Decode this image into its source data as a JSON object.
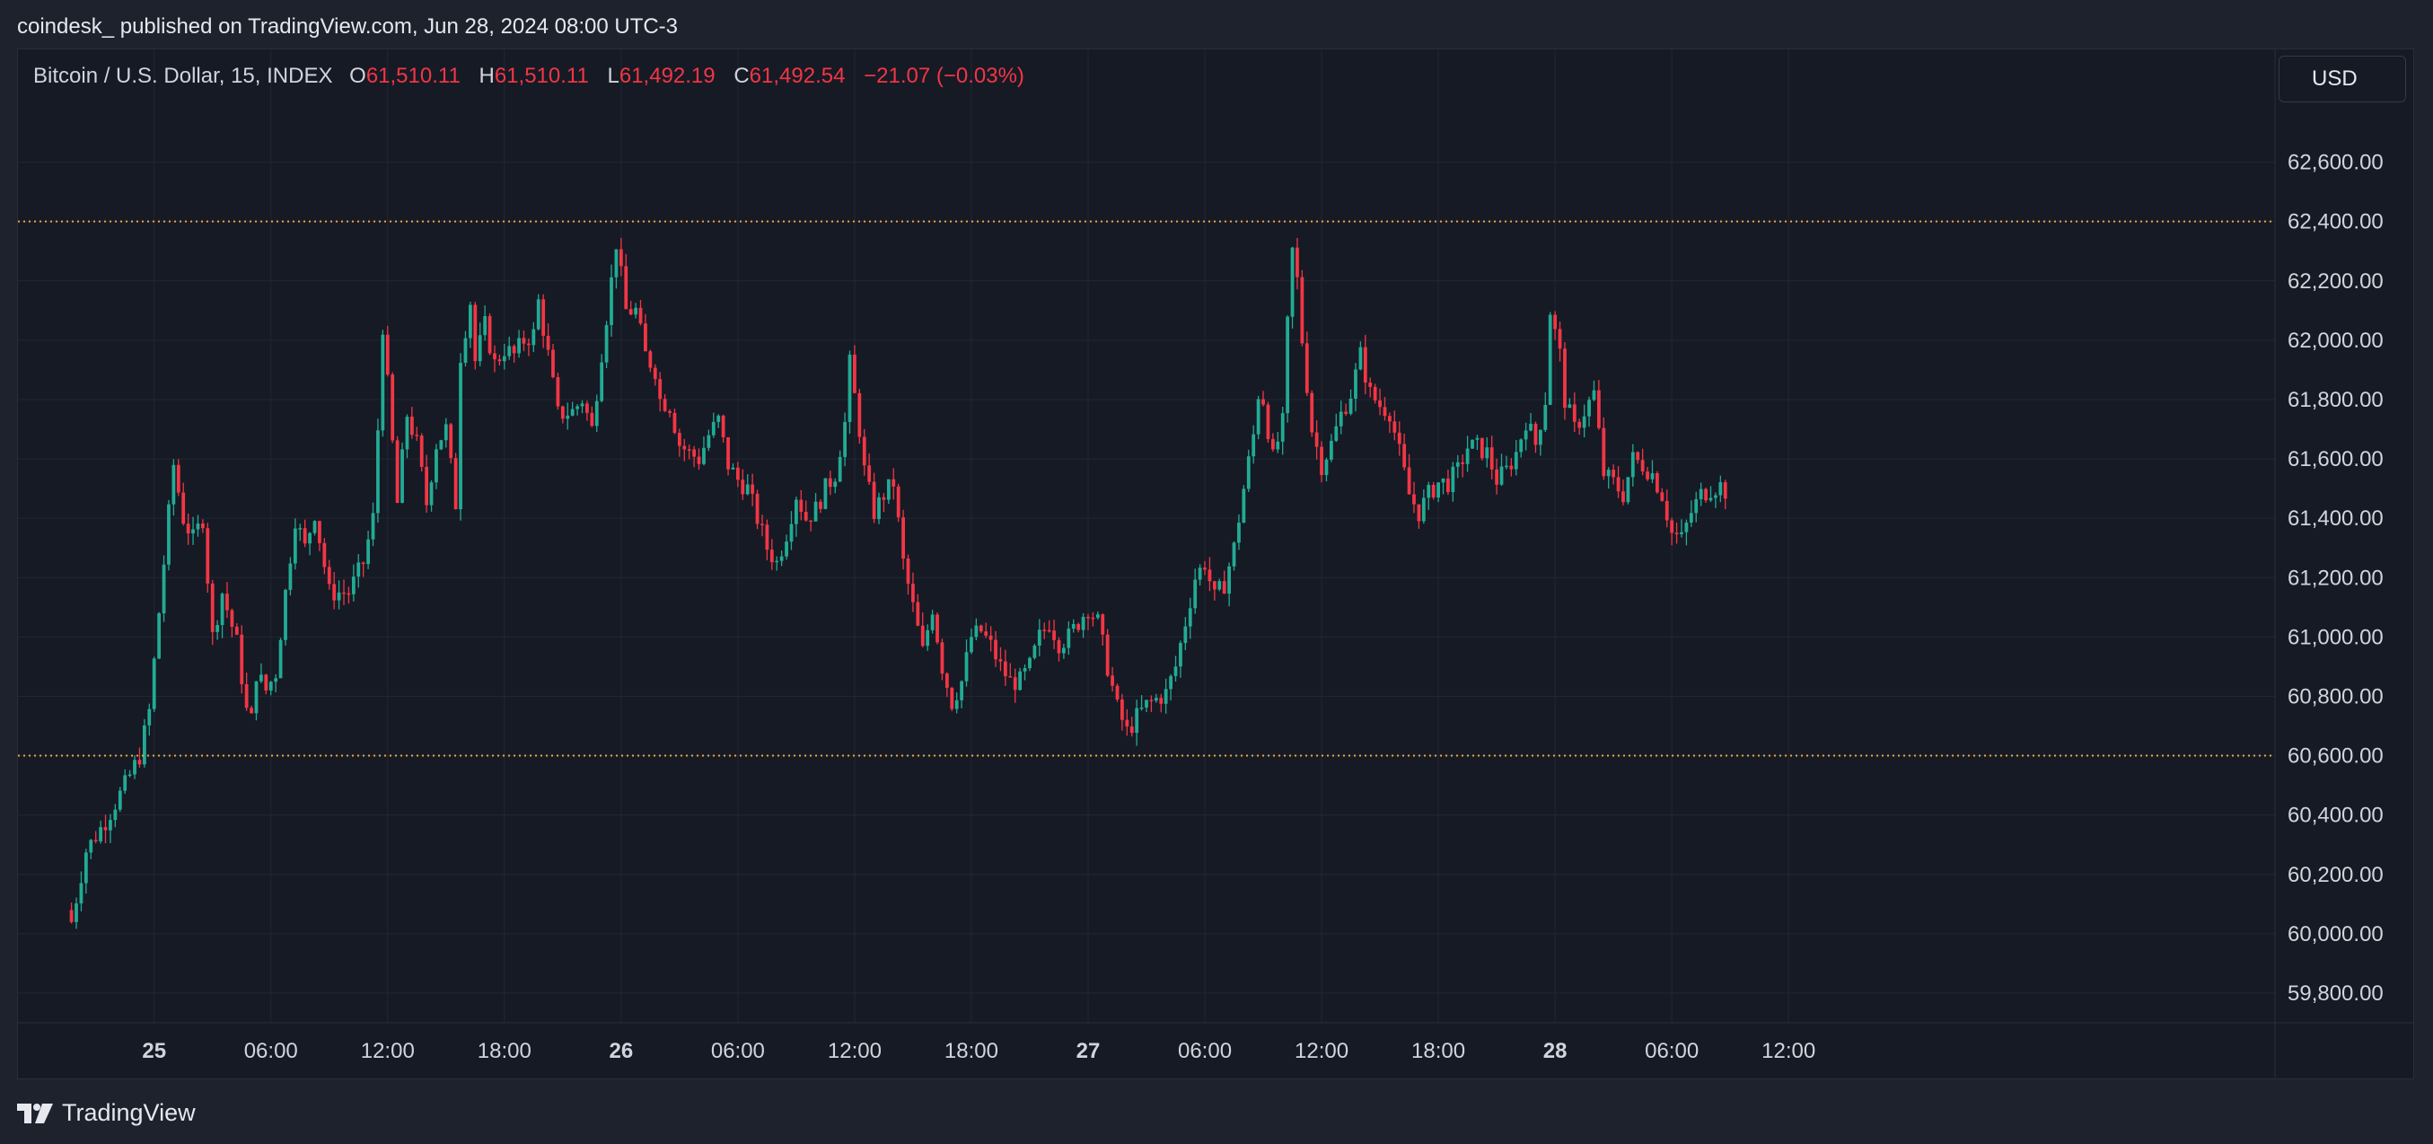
{
  "header": {
    "publisher_line": "coindesk_ published on TradingView.com, Jun 28, 2024 08:00 UTC-3"
  },
  "legend": {
    "symbol": "Bitcoin / U.S. Dollar, 15, INDEX",
    "open_key": "O",
    "open": "61,510.11",
    "high_key": "H",
    "high": "61,510.11",
    "low_key": "L",
    "low": "61,492.19",
    "close_key": "C",
    "close": "61,492.54",
    "change": "−21.07 (−0.03%)"
  },
  "toolbar": {
    "currency_label": "USD"
  },
  "footer": {
    "brand_label": "TradingView"
  },
  "colors": {
    "background": "#161a25",
    "grid": "#232733",
    "up": "#22ab94",
    "down": "#f23645",
    "text": "#d1d4dc",
    "level_line": "#f0a53a"
  },
  "chart_data": {
    "type": "candlestick",
    "timeframe": "15",
    "ylim": [
      59700,
      62980
    ],
    "y_ticks": [
      59800,
      60000,
      60200,
      60400,
      60600,
      60800,
      61000,
      61200,
      61400,
      61600,
      61800,
      62000,
      62200,
      62400,
      62600
    ],
    "y_tick_labels": [
      "59,800.00",
      "60,000.00",
      "60,200.00",
      "60,400.00",
      "60,600.00",
      "60,800.00",
      "61,000.00",
      "61,200.00",
      "61,400.00",
      "61,600.00",
      "61,800.00",
      "62,000.00",
      "62,200.00",
      "62,400.00",
      "62,600.00"
    ],
    "x_range_hours": [
      -7,
      109
    ],
    "x_ticks": [
      {
        "hour": 0,
        "label": "25",
        "bold": true
      },
      {
        "hour": 6,
        "label": "06:00"
      },
      {
        "hour": 12,
        "label": "12:00"
      },
      {
        "hour": 18,
        "label": "18:00"
      },
      {
        "hour": 24,
        "label": "26",
        "bold": true
      },
      {
        "hour": 30,
        "label": "06:00"
      },
      {
        "hour": 36,
        "label": "12:00"
      },
      {
        "hour": 42,
        "label": "18:00"
      },
      {
        "hour": 48,
        "label": "27",
        "bold": true
      },
      {
        "hour": 54,
        "label": "06:00"
      },
      {
        "hour": 60,
        "label": "12:00"
      },
      {
        "hour": 66,
        "label": "18:00"
      },
      {
        "hour": 72,
        "label": "28",
        "bold": true
      },
      {
        "hour": 78,
        "label": "06:00"
      },
      {
        "hour": 84,
        "label": "12:00"
      }
    ],
    "horizontal_levels": [
      62400,
      60600
    ],
    "first_candle_hour": -4.25,
    "bar_hours": 0.25,
    "anchors": [
      [
        -4.25,
        60040
      ],
      [
        -3.5,
        60280
      ],
      [
        -2.5,
        60380
      ],
      [
        -1.5,
        60500
      ],
      [
        -0.75,
        60600
      ],
      [
        -0.25,
        60750
      ],
      [
        0.5,
        61250
      ],
      [
        1.0,
        61580
      ],
      [
        1.5,
        61400
      ],
      [
        2.0,
        61330
      ],
      [
        2.5,
        61400
      ],
      [
        3.0,
        61000
      ],
      [
        3.5,
        61150
      ],
      [
        4.25,
        60980
      ],
      [
        4.75,
        60750
      ],
      [
        5.0,
        60720
      ],
      [
        5.25,
        60880
      ],
      [
        5.75,
        60820
      ],
      [
        6.25,
        60880
      ],
      [
        6.75,
        61150
      ],
      [
        7.25,
        61400
      ],
      [
        7.75,
        61300
      ],
      [
        8.25,
        61420
      ],
      [
        9.0,
        61150
      ],
      [
        10.0,
        61150
      ],
      [
        10.75,
        61250
      ],
      [
        11.25,
        61400
      ],
      [
        11.5,
        61700
      ],
      [
        11.75,
        62050
      ],
      [
        12.5,
        61450
      ],
      [
        13.0,
        61750
      ],
      [
        13.5,
        61650
      ],
      [
        14.0,
        61450
      ],
      [
        14.5,
        61650
      ],
      [
        15.0,
        61700
      ],
      [
        15.5,
        61450
      ],
      [
        15.75,
        61950
      ],
      [
        16.25,
        62130
      ],
      [
        16.5,
        61930
      ],
      [
        17.0,
        62050
      ],
      [
        17.5,
        61920
      ],
      [
        18.0,
        61970
      ],
      [
        18.5,
        61950
      ],
      [
        19.0,
        62000
      ],
      [
        19.5,
        62020
      ],
      [
        19.75,
        62130
      ],
      [
        20.25,
        61950
      ],
      [
        20.75,
        61750
      ],
      [
        21.5,
        61760
      ],
      [
        22.0,
        61800
      ],
      [
        22.5,
        61700
      ],
      [
        23.0,
        61960
      ],
      [
        23.5,
        62200
      ],
      [
        23.75,
        62330
      ],
      [
        24.25,
        62100
      ],
      [
        24.75,
        62100
      ],
      [
        25.25,
        61950
      ],
      [
        25.75,
        61900
      ],
      [
        26.0,
        61800
      ],
      [
        26.5,
        61780
      ],
      [
        27.0,
        61650
      ],
      [
        27.5,
        61620
      ],
      [
        28.0,
        61600
      ],
      [
        28.5,
        61680
      ],
      [
        29.0,
        61730
      ],
      [
        29.5,
        61580
      ],
      [
        30.0,
        61530
      ],
      [
        30.5,
        61500
      ],
      [
        31.0,
        61400
      ],
      [
        31.5,
        61300
      ],
      [
        32.0,
        61250
      ],
      [
        32.5,
        61350
      ],
      [
        33.0,
        61480
      ],
      [
        33.5,
        61400
      ],
      [
        34.0,
        61430
      ],
      [
        34.5,
        61500
      ],
      [
        35.0,
        61550
      ],
      [
        35.5,
        61720
      ],
      [
        35.75,
        61920
      ],
      [
        36.25,
        61700
      ],
      [
        36.5,
        61560
      ],
      [
        37.0,
        61420
      ],
      [
        37.5,
        61480
      ],
      [
        38.0,
        61520
      ],
      [
        38.5,
        61250
      ],
      [
        39.0,
        61100
      ],
      [
        39.5,
        60950
      ],
      [
        40.0,
        61100
      ],
      [
        40.5,
        60900
      ],
      [
        41.0,
        60780
      ],
      [
        41.5,
        60850
      ],
      [
        42.0,
        61000
      ],
      [
        42.5,
        61020
      ],
      [
        43.0,
        60970
      ],
      [
        43.5,
        60900
      ],
      [
        44.0,
        60850
      ],
      [
        44.5,
        60850
      ],
      [
        45.0,
        60900
      ],
      [
        45.5,
        61000
      ],
      [
        46.0,
        61050
      ],
      [
        46.5,
        60980
      ],
      [
        47.0,
        61000
      ],
      [
        47.5,
        61050
      ],
      [
        48.0,
        61100
      ],
      [
        48.5,
        61050
      ],
      [
        49.0,
        60900
      ],
      [
        49.5,
        60760
      ],
      [
        50.0,
        60680
      ],
      [
        50.5,
        60730
      ],
      [
        51.0,
        60770
      ],
      [
        51.5,
        60790
      ],
      [
        52.0,
        60810
      ],
      [
        52.5,
        60900
      ],
      [
        53.0,
        61050
      ],
      [
        53.5,
        61200
      ],
      [
        54.0,
        61250
      ],
      [
        54.5,
        61130
      ],
      [
        55.0,
        61180
      ],
      [
        55.5,
        61300
      ],
      [
        56.0,
        61500
      ],
      [
        56.5,
        61680
      ],
      [
        56.75,
        61820
      ],
      [
        57.0,
        61800
      ],
      [
        57.5,
        61600
      ],
      [
        58.0,
        61720
      ],
      [
        58.25,
        62050
      ],
      [
        58.5,
        62300
      ],
      [
        58.75,
        62200
      ],
      [
        59.0,
        62000
      ],
      [
        59.5,
        61700
      ],
      [
        60.0,
        61580
      ],
      [
        60.5,
        61650
      ],
      [
        61.0,
        61750
      ],
      [
        61.5,
        61820
      ],
      [
        62.0,
        61950
      ],
      [
        62.5,
        61820
      ],
      [
        63.0,
        61780
      ],
      [
        63.5,
        61760
      ],
      [
        64.0,
        61620
      ],
      [
        64.5,
        61480
      ],
      [
        65.0,
        61420
      ],
      [
        65.5,
        61480
      ],
      [
        66.0,
        61520
      ],
      [
        66.5,
        61520
      ],
      [
        67.0,
        61560
      ],
      [
        67.5,
        61640
      ],
      [
        68.0,
        61640
      ],
      [
        68.5,
        61620
      ],
      [
        69.0,
        61530
      ],
      [
        69.5,
        61560
      ],
      [
        70.0,
        61620
      ],
      [
        70.5,
        61730
      ],
      [
        71.0,
        61650
      ],
      [
        71.5,
        61800
      ],
      [
        71.75,
        62100
      ],
      [
        72.25,
        61950
      ],
      [
        72.5,
        61800
      ],
      [
        73.0,
        61700
      ],
      [
        73.5,
        61760
      ],
      [
        74.0,
        61820
      ],
      [
        74.5,
        61550
      ],
      [
        75.0,
        61520
      ],
      [
        75.5,
        61480
      ],
      [
        76.0,
        61600
      ],
      [
        76.5,
        61580
      ],
      [
        77.0,
        61550
      ],
      [
        77.5,
        61480
      ],
      [
        78.0,
        61350
      ],
      [
        78.5,
        61330
      ],
      [
        79.0,
        61420
      ],
      [
        79.5,
        61480
      ],
      [
        80.0,
        61500
      ],
      [
        80.5,
        61510
      ],
      [
        80.75,
        61492
      ]
    ]
  }
}
